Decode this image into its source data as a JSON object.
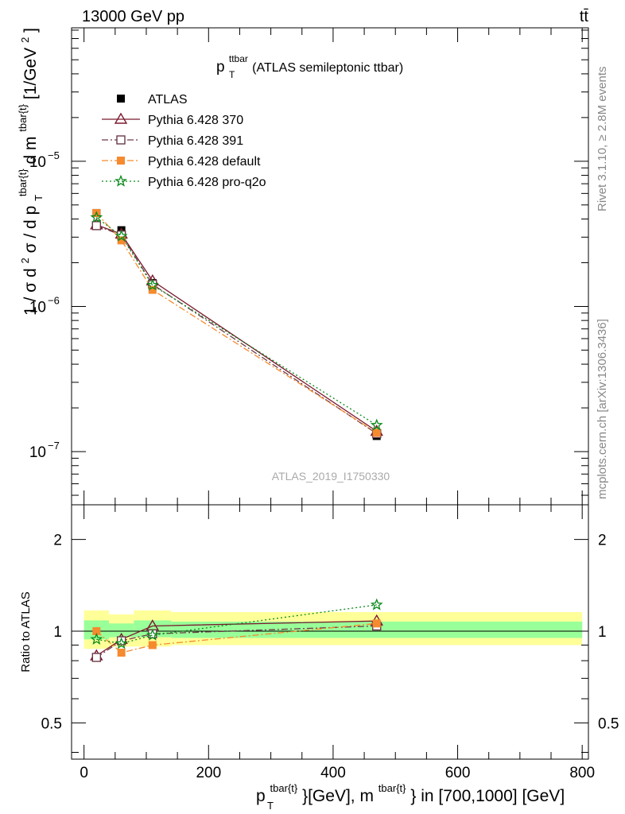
{
  "header": {
    "energy_label": "13000 GeV pp",
    "process_label": "tt̄"
  },
  "side_labels": {
    "rivet": "Rivet 3.1.10, ≥ 2.8M events",
    "mcplots": "mcplots.cern.ch [arXiv:1306.3436]"
  },
  "watermark": "ATLAS_2019_I1750330",
  "chart_data": [
    {
      "type": "line",
      "panel": "main",
      "title": {
        "base": "p",
        "sub": "T",
        "sup": "ttbar",
        "rest": " (ATLAS semileptonic ttbar)"
      },
      "ylabel": {
        "prefix": "1 / σ d",
        "sup2": "2",
        "mid": "σ / d p",
        "sub_T": "T",
        "sup_tbar": "tbar{t}",
        "dm": "d m",
        "sup_tbar2": "tbar{t}",
        "unit_open": "[1/GeV",
        "unit_sup": "2",
        "unit_close": "]"
      },
      "xlim": [
        -20,
        810
      ],
      "ylim": [
        4.3e-08,
        8.3e-05
      ],
      "yscale": "log",
      "yticks": [
        {
          "value": 1e-07,
          "base": "10",
          "exp": "−7"
        },
        {
          "value": 1e-06,
          "base": "10",
          "exp": "−6"
        },
        {
          "value": 1e-05,
          "base": "10",
          "exp": "−5"
        }
      ],
      "legend_position": "top-left",
      "x": [
        20,
        60,
        110,
        470
      ],
      "series": [
        {
          "name": "ATLAS",
          "values": [
            4.4e-06,
            3.35e-06,
            1.45e-06,
            1.28e-07
          ],
          "color": "#000000",
          "style": "data",
          "marker": "square-filled"
        },
        {
          "name": "Pythia 6.428 370",
          "values": [
            3.65e-06,
            3.15e-06,
            1.5e-06,
            1.38e-07
          ],
          "color": "#7b1a2e",
          "style": "solid",
          "marker": "triangle-open"
        },
        {
          "name": "Pythia 6.428 391",
          "values": [
            3.6e-06,
            3.1e-06,
            1.42e-06,
            1.33e-07
          ],
          "color": "#6b3a47",
          "style": "dashdot",
          "marker": "square-open"
        },
        {
          "name": "Pythia 6.428 default",
          "values": [
            4.4e-06,
            2.85e-06,
            1.3e-06,
            1.35e-07
          ],
          "color": "#f58a2e",
          "style": "dashdot",
          "marker": "square-filled"
        },
        {
          "name": "Pythia 6.428 pro-q2o",
          "values": [
            4.1e-06,
            3.05e-06,
            1.4e-06,
            1.52e-07
          ],
          "color": "#0a8a1a",
          "style": "dotted",
          "marker": "star"
        }
      ]
    },
    {
      "type": "line",
      "panel": "ratio",
      "ylabel": "Ratio to ATLAS",
      "xlim": [
        -20,
        810
      ],
      "ylim": [
        0.38,
        2.6
      ],
      "yscale": "log",
      "yticks": [
        0.5,
        1,
        2
      ],
      "xticks": [
        0,
        200,
        400,
        600,
        800
      ],
      "xlabel": {
        "p": "p",
        "sub_T": "T",
        "sup1": "tbar{t}",
        "mid": "}[GeV], m",
        "sup2": "tbar{t}",
        "rest": "} in [700,1000] [GeV]"
      },
      "uncertainty_bands": [
        {
          "x_range": [
            0,
            40
          ],
          "outer": [
            0.875,
            1.17
          ],
          "inner": [
            0.94,
            1.085
          ]
        },
        {
          "x_range": [
            40,
            80
          ],
          "outer": [
            0.89,
            1.135
          ],
          "inner": [
            0.955,
            1.06
          ]
        },
        {
          "x_range": [
            80,
            140
          ],
          "outer": [
            0.89,
            1.17
          ],
          "inner": [
            0.955,
            1.085
          ]
        },
        {
          "x_range": [
            140,
            800
          ],
          "outer": [
            0.9,
            1.155
          ],
          "inner": [
            0.95,
            1.075
          ]
        }
      ],
      "x": [
        20,
        60,
        110,
        470
      ],
      "series": [
        {
          "name": "Pythia 6.428 370",
          "values": [
            0.83,
            0.94,
            1.04,
            1.08
          ],
          "color": "#7b1a2e",
          "style": "solid",
          "marker": "triangle-open"
        },
        {
          "name": "Pythia 6.428 391",
          "values": [
            0.82,
            0.93,
            0.98,
            1.04
          ],
          "color": "#6b3a47",
          "style": "dashdot",
          "marker": "square-open"
        },
        {
          "name": "Pythia 6.428 default",
          "values": [
            1.0,
            0.85,
            0.9,
            1.06
          ],
          "color": "#f58a2e",
          "style": "dashdot",
          "marker": "square-filled"
        },
        {
          "name": "Pythia 6.428 pro-q2o",
          "values": [
            0.94,
            0.91,
            0.97,
            1.22
          ],
          "color": "#0a8a1a",
          "style": "dotted",
          "marker": "star"
        }
      ]
    }
  ]
}
